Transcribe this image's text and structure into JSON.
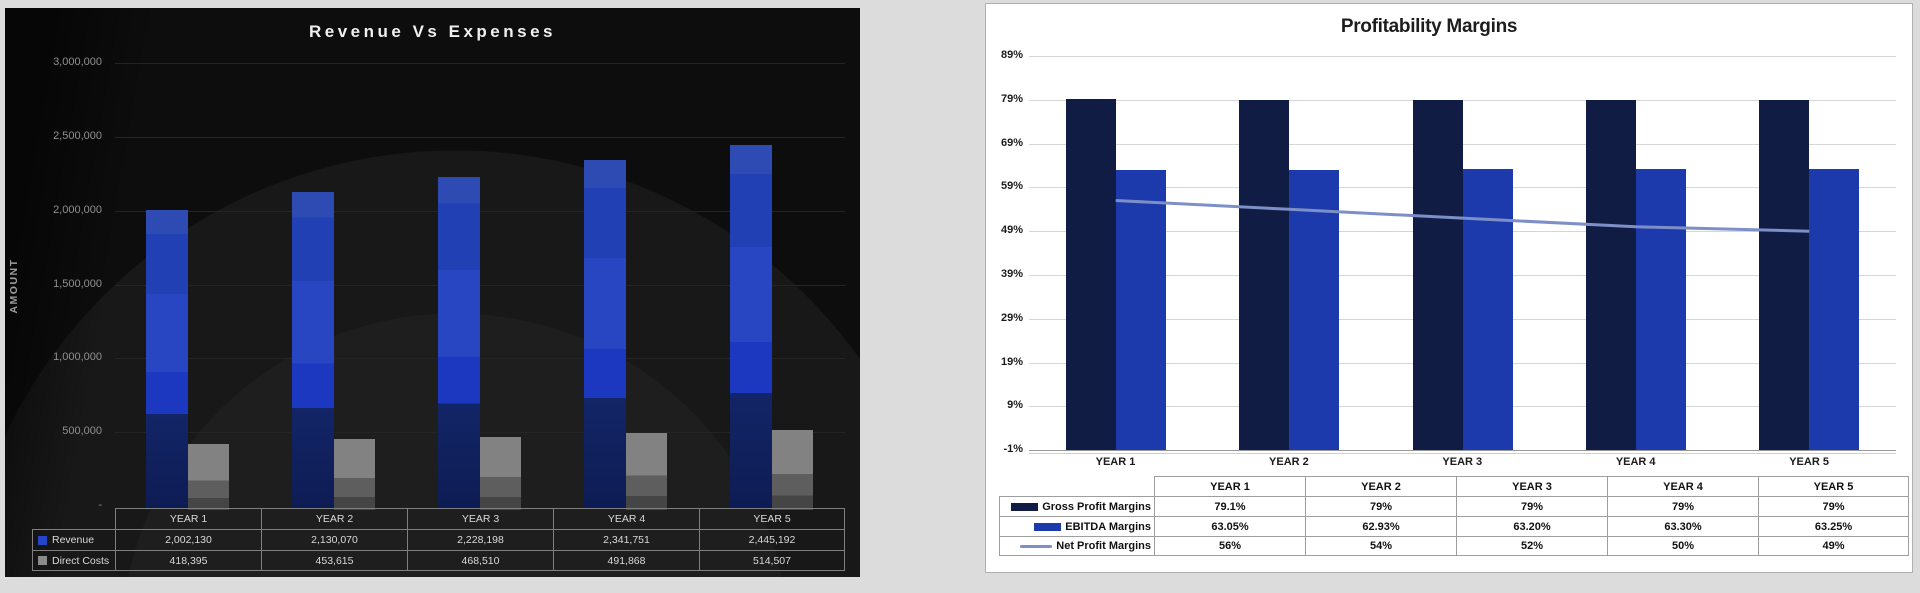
{
  "page": {
    "background_color": "#dcdcdc"
  },
  "chart_data": [
    {
      "type": "bar",
      "theme": "dark",
      "title": "Revenue Vs Expenses",
      "ylabel": "AMOUNT",
      "background": "#0b0b0b",
      "categories": [
        "YEAR 1",
        "YEAR 2",
        "YEAR 3",
        "YEAR 4",
        "YEAR 5"
      ],
      "series": [
        {
          "name": "Revenue",
          "kind": "bar",
          "color": "#2545c8",
          "swatch": "square",
          "values": [
            2002130,
            2130070,
            2228198,
            2341751,
            2445192
          ],
          "labels": [
            "2,002,130",
            "2,130,070",
            "2,228,198",
            "2,341,751",
            "2,445,192"
          ]
        },
        {
          "name": "Direct Costs",
          "kind": "bar",
          "color": "#8a8a8a",
          "swatch": "square",
          "values": [
            418395,
            453615,
            468510,
            491868,
            514507
          ],
          "labels": [
            "418,395",
            "453,615",
            "468,510",
            "491,868",
            "514,507"
          ]
        }
      ],
      "y_ticks": [
        {
          "value": 3000000,
          "label": "3,000,000"
        },
        {
          "value": 2500000,
          "label": "2,500,000"
        },
        {
          "value": 2000000,
          "label": "2,000,000"
        },
        {
          "value": 1500000,
          "label": "1,500,000"
        },
        {
          "value": 1000000,
          "label": "1,000,000"
        },
        {
          "value": 500000,
          "label": "500,000"
        },
        {
          "value": 0,
          "label": "-"
        }
      ],
      "ylim": [
        0,
        3000000
      ],
      "grid": true,
      "legend_position": "table-left"
    },
    {
      "type": "bar+line",
      "theme": "light",
      "title": "Profitability Margins",
      "ylabel": "",
      "background": "#ffffff",
      "categories": [
        "YEAR 1",
        "YEAR 2",
        "YEAR 3",
        "YEAR 4",
        "YEAR 5"
      ],
      "series": [
        {
          "name": "Gross Profit Margins",
          "kind": "bar",
          "color": "#101c44",
          "swatch": "bar",
          "values": [
            79.1,
            79,
            79,
            79,
            79
          ],
          "labels": [
            "79.1%",
            "79%",
            "79%",
            "79%",
            "79%"
          ]
        },
        {
          "name": "EBITDA Margins",
          "kind": "bar",
          "color": "#1c3aab",
          "swatch": "bar",
          "values": [
            63.05,
            62.93,
            63.2,
            63.3,
            63.25
          ],
          "labels": [
            "63.05%",
            "62.93%",
            "63.20%",
            "63.30%",
            "63.25%"
          ]
        },
        {
          "name": "Net Profit Margins",
          "kind": "line",
          "color": "#7d8fc7",
          "swatch": "line",
          "values": [
            56,
            54,
            52,
            50,
            49
          ],
          "labels": [
            "56%",
            "54%",
            "52%",
            "50%",
            "49%"
          ]
        }
      ],
      "y_ticks": [
        {
          "value": 89,
          "label": "89%"
        },
        {
          "value": 79,
          "label": "79%"
        },
        {
          "value": 69,
          "label": "69%"
        },
        {
          "value": 59,
          "label": "59%"
        },
        {
          "value": 49,
          "label": "49%"
        },
        {
          "value": 39,
          "label": "39%"
        },
        {
          "value": 29,
          "label": "29%"
        },
        {
          "value": 19,
          "label": "19%"
        },
        {
          "value": 9,
          "label": "9%"
        },
        {
          "value": -1,
          "label": "-1%"
        }
      ],
      "ylim": [
        -1,
        89
      ],
      "grid": true,
      "legend_position": "table-left"
    }
  ]
}
